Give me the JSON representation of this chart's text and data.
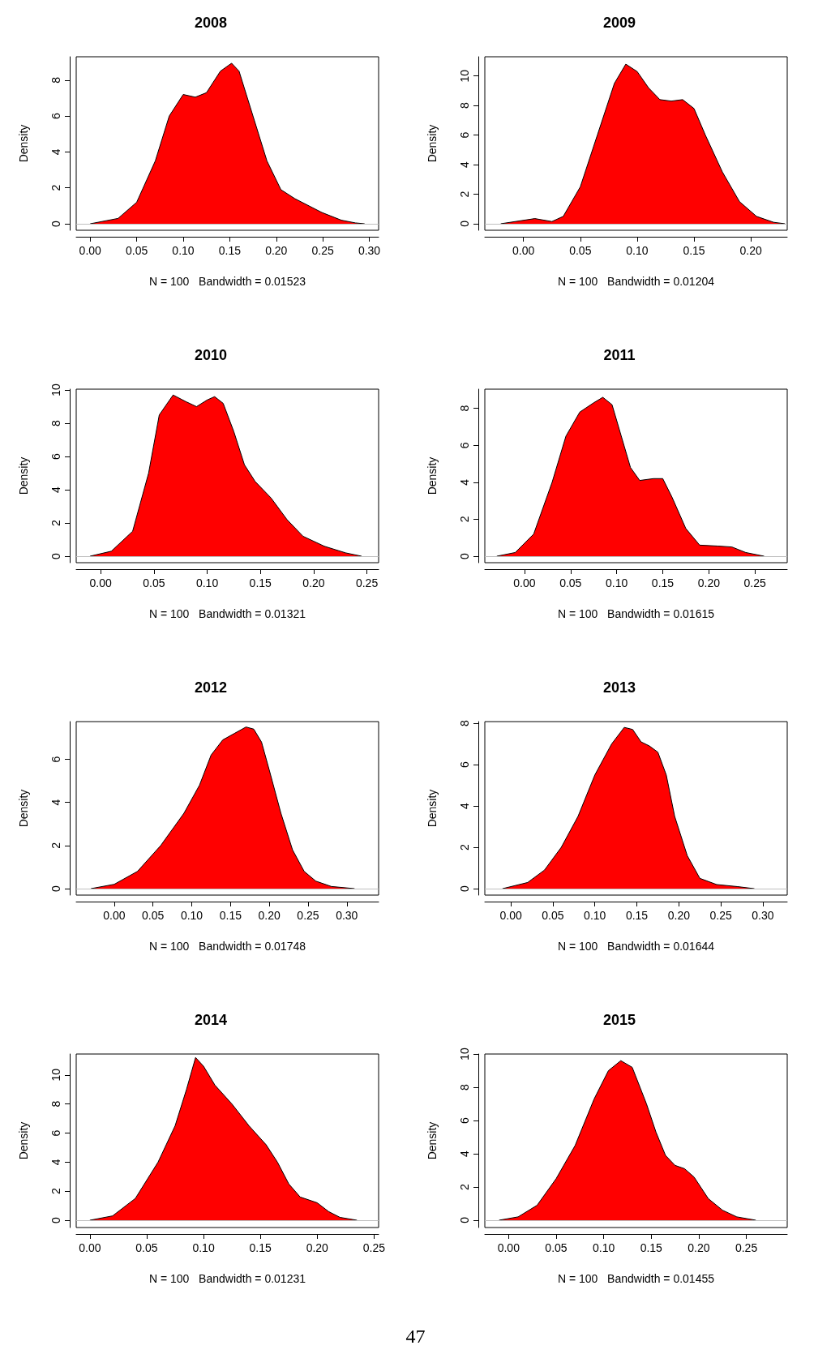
{
  "chart_data": [
    {
      "type": "area",
      "title": "2008",
      "xlabel": "N = 100   Bandwidth = 0.01523",
      "ylabel": "Density",
      "xlim": [
        -0.015,
        0.31
      ],
      "ylim": [
        -0.36,
        9.3
      ],
      "xticks": [
        {
          "value": 0,
          "label": "0.00"
        },
        {
          "value": 0.05,
          "label": "0.05"
        },
        {
          "value": 0.1,
          "label": "0.10"
        },
        {
          "value": 0.15,
          "label": "0.15"
        },
        {
          "value": 0.2,
          "label": "0.20"
        },
        {
          "value": 0.25,
          "label": "0.25"
        },
        {
          "value": 0.3,
          "label": "0.30"
        }
      ],
      "yticks": [
        0,
        2,
        4,
        6,
        8
      ],
      "grid": false,
      "marker": "none",
      "ref_lines": [
        {
          "axis": "y",
          "value": 0,
          "label": null,
          "color": "#bebebe"
        }
      ],
      "series": [
        {
          "color": "#ff0000",
          "x": [
            0,
            0.03,
            0.05,
            0.07,
            0.085,
            0.1,
            0.113,
            0.125,
            0.14,
            0.152,
            0.16,
            0.175,
            0.19,
            0.205,
            0.22,
            0.249,
            0.27,
            0.285,
            0.295
          ],
          "values": [
            0,
            0.3,
            1.2,
            3.5,
            6,
            7.2,
            7.05,
            7.3,
            8.5,
            8.94,
            8.5,
            6,
            3.5,
            1.9,
            1.4,
            0.63,
            0.2,
            0.05,
            0
          ]
        }
      ]
    },
    {
      "type": "area",
      "title": "2009",
      "xlabel": "N = 100   Bandwidth = 0.01204",
      "ylabel": "Density",
      "xlim": [
        -0.034,
        0.232
      ],
      "ylim": [
        -0.44,
        11.3
      ],
      "xticks": [
        {
          "value": 0,
          "label": "0.00"
        },
        {
          "value": 0.05,
          "label": "0.05"
        },
        {
          "value": 0.1,
          "label": "0.10"
        },
        {
          "value": 0.15,
          "label": "0.15"
        },
        {
          "value": 0.2,
          "label": "0.20"
        }
      ],
      "yticks": [
        0,
        2,
        4,
        6,
        8,
        10
      ],
      "grid": false,
      "marker": "none",
      "ref_lines": [
        {
          "axis": "y",
          "value": 0,
          "label": null,
          "color": "#bebebe"
        }
      ],
      "series": [
        {
          "color": "#ff0000",
          "x": [
            -0.02,
            0.01,
            0.025,
            0.035,
            0.05,
            0.065,
            0.08,
            0.09,
            0.1,
            0.11,
            0.12,
            0.13,
            0.14,
            0.15,
            0.16,
            0.175,
            0.19,
            0.205,
            0.22,
            0.23
          ],
          "values": [
            0,
            0.35,
            0.15,
            0.5,
            2.5,
            6,
            9.5,
            10.8,
            10.3,
            9.2,
            8.4,
            8.3,
            8.4,
            7.8,
            6,
            3.5,
            1.5,
            0.5,
            0.1,
            0
          ]
        }
      ]
    },
    {
      "type": "area",
      "title": "2010",
      "xlabel": "N = 100   Bandwidth = 0.01321",
      "ylabel": "Density",
      "xlim": [
        -0.023,
        0.261
      ],
      "ylim": [
        -0.39,
        10.05
      ],
      "xticks": [
        {
          "value": 0,
          "label": "0.00"
        },
        {
          "value": 0.05,
          "label": "0.05"
        },
        {
          "value": 0.1,
          "label": "0.10"
        },
        {
          "value": 0.15,
          "label": "0.15"
        },
        {
          "value": 0.2,
          "label": "0.20"
        },
        {
          "value": 0.25,
          "label": "0.25"
        }
      ],
      "yticks": [
        0,
        2,
        4,
        6,
        8,
        10
      ],
      "grid": false,
      "marker": "none",
      "ref_lines": [
        {
          "axis": "y",
          "value": 0,
          "label": null,
          "color": "#bebebe"
        }
      ],
      "series": [
        {
          "color": "#ff0000",
          "x": [
            -0.01,
            0.01,
            0.03,
            0.045,
            0.055,
            0.068,
            0.08,
            0.09,
            0.1,
            0.107,
            0.115,
            0.125,
            0.135,
            0.145,
            0.16,
            0.175,
            0.19,
            0.21,
            0.23,
            0.245
          ],
          "values": [
            0,
            0.3,
            1.5,
            5,
            8.5,
            9.7,
            9.3,
            9,
            9.4,
            9.6,
            9.2,
            7.5,
            5.5,
            4.5,
            3.5,
            2.2,
            1.2,
            0.6,
            0.2,
            0
          ]
        }
      ]
    },
    {
      "type": "area",
      "title": "2011",
      "xlabel": "N = 100   Bandwidth = 0.01615",
      "ylabel": "Density",
      "xlim": [
        -0.043,
        0.285
      ],
      "ylim": [
        -0.35,
        9.04
      ],
      "xticks": [
        {
          "value": 0,
          "label": "0.00"
        },
        {
          "value": 0.05,
          "label": "0.05"
        },
        {
          "value": 0.1,
          "label": "0.10"
        },
        {
          "value": 0.15,
          "label": "0.15"
        },
        {
          "value": 0.2,
          "label": "0.20"
        },
        {
          "value": 0.25,
          "label": "0.25"
        }
      ],
      "yticks": [
        0,
        2,
        4,
        6,
        8
      ],
      "grid": false,
      "marker": "none",
      "ref_lines": [
        {
          "axis": "y",
          "value": 0,
          "label": null,
          "color": "#bebebe"
        }
      ],
      "series": [
        {
          "color": "#ff0000",
          "x": [
            -0.03,
            -0.01,
            0.01,
            0.03,
            0.045,
            0.06,
            0.075,
            0.085,
            0.095,
            0.105,
            0.115,
            0.125,
            0.14,
            0.15,
            0.16,
            0.175,
            0.19,
            0.21,
            0.225,
            0.24,
            0.26
          ],
          "values": [
            0,
            0.2,
            1.2,
            4,
            6.5,
            7.8,
            8.3,
            8.6,
            8.2,
            6.5,
            4.8,
            4.1,
            4.2,
            4.2,
            3.2,
            1.5,
            0.6,
            0.55,
            0.5,
            0.2,
            0
          ]
        }
      ]
    },
    {
      "type": "area",
      "title": "2012",
      "xlabel": "N = 100   Bandwidth = 0.01748",
      "ylabel": "Density",
      "xlim": [
        -0.049,
        0.341
      ],
      "ylim": [
        -0.3,
        7.75
      ],
      "xticks": [
        {
          "value": 0,
          "label": "0.00"
        },
        {
          "value": 0.05,
          "label": "0.05"
        },
        {
          "value": 0.1,
          "label": "0.10"
        },
        {
          "value": 0.15,
          "label": "0.15"
        },
        {
          "value": 0.2,
          "label": "0.20"
        },
        {
          "value": 0.25,
          "label": "0.25"
        },
        {
          "value": 0.3,
          "label": "0.30"
        }
      ],
      "yticks": [
        0,
        2,
        4,
        6
      ],
      "grid": false,
      "marker": "none",
      "ref_lines": [
        {
          "axis": "y",
          "value": 0,
          "label": null,
          "color": "#bebebe"
        }
      ],
      "series": [
        {
          "color": "#ff0000",
          "x": [
            -0.03,
            0,
            0.03,
            0.06,
            0.09,
            0.11,
            0.125,
            0.14,
            0.155,
            0.17,
            0.18,
            0.19,
            0.2,
            0.215,
            0.23,
            0.245,
            0.26,
            0.28,
            0.31
          ],
          "values": [
            0,
            0.2,
            0.8,
            2,
            3.5,
            4.8,
            6.2,
            6.9,
            7.2,
            7.5,
            7.4,
            6.8,
            5.5,
            3.5,
            1.8,
            0.8,
            0.35,
            0.1,
            0
          ]
        }
      ]
    },
    {
      "type": "area",
      "title": "2013",
      "xlabel": "N = 100   Bandwidth = 0.01644",
      "ylabel": "Density",
      "xlim": [
        -0.031,
        0.329
      ],
      "ylim": [
        -0.31,
        8.08
      ],
      "xticks": [
        {
          "value": 0,
          "label": "0.00"
        },
        {
          "value": 0.05,
          "label": "0.05"
        },
        {
          "value": 0.1,
          "label": "0.10"
        },
        {
          "value": 0.15,
          "label": "0.15"
        },
        {
          "value": 0.2,
          "label": "0.20"
        },
        {
          "value": 0.25,
          "label": "0.25"
        },
        {
          "value": 0.3,
          "label": "0.30"
        }
      ],
      "yticks": [
        0,
        2,
        4,
        6,
        8
      ],
      "grid": false,
      "marker": "none",
      "ref_lines": [
        {
          "axis": "y",
          "value": 0,
          "label": null,
          "color": "#bebebe"
        }
      ],
      "series": [
        {
          "color": "#ff0000",
          "x": [
            -0.01,
            0.02,
            0.04,
            0.06,
            0.08,
            0.1,
            0.12,
            0.135,
            0.145,
            0.155,
            0.165,
            0.175,
            0.185,
            0.195,
            0.21,
            0.225,
            0.245,
            0.27,
            0.29
          ],
          "values": [
            0,
            0.3,
            0.9,
            2,
            3.5,
            5.5,
            7,
            7.8,
            7.7,
            7.1,
            6.9,
            6.6,
            5.5,
            3.5,
            1.6,
            0.5,
            0.2,
            0.1,
            0
          ]
        }
      ]
    },
    {
      "type": "area",
      "title": "2014",
      "xlabel": "N = 100   Bandwidth = 0.01231",
      "ylabel": "Density",
      "xlim": [
        -0.012,
        0.254
      ],
      "ylim": [
        -0.5,
        11.44
      ],
      "xticks": [
        {
          "value": 0,
          "label": "0.00"
        },
        {
          "value": 0.05,
          "label": "0.05"
        },
        {
          "value": 0.1,
          "label": "0.10"
        },
        {
          "value": 0.15,
          "label": "0.15"
        },
        {
          "value": 0.2,
          "label": "0.20"
        },
        {
          "value": 0.25,
          "label": "0.25"
        }
      ],
      "yticks": [
        0,
        2,
        4,
        6,
        8,
        10
      ],
      "grid": false,
      "marker": "none",
      "annotations": [
        "47"
      ],
      "ref_lines": [
        {
          "axis": "y",
          "value": 0,
          "label": null,
          "color": "#bebebe"
        }
      ],
      "series": [
        {
          "color": "#ff0000",
          "x": [
            0,
            0.02,
            0.04,
            0.06,
            0.075,
            0.085,
            0.093,
            0.1,
            0.11,
            0.125,
            0.14,
            0.155,
            0.165,
            0.175,
            0.185,
            0.2,
            0.21,
            0.22,
            0.235
          ],
          "values": [
            0,
            0.3,
            1.5,
            4,
            6.5,
            9,
            11.2,
            10.6,
            9.3,
            8,
            6.5,
            5.2,
            4,
            2.5,
            1.6,
            1.2,
            0.6,
            0.2,
            0
          ]
        }
      ]
    },
    {
      "type": "area",
      "title": "2015",
      "xlabel": "N = 100   Bandwidth = 0.01455",
      "ylabel": "Density",
      "xlim": [
        -0.025,
        0.293
      ],
      "ylim": [
        -0.44,
        10
      ],
      "xticks": [
        {
          "value": 0,
          "label": "0.00"
        },
        {
          "value": 0.05,
          "label": "0.05"
        },
        {
          "value": 0.1,
          "label": "0.10"
        },
        {
          "value": 0.15,
          "label": "0.15"
        },
        {
          "value": 0.2,
          "label": "0.20"
        },
        {
          "value": 0.25,
          "label": "0.25"
        }
      ],
      "yticks": [
        0,
        2,
        4,
        6,
        8,
        10
      ],
      "grid": false,
      "marker": "none",
      "ref_lines": [
        {
          "axis": "y",
          "value": 0,
          "label": null,
          "color": "#bebebe"
        }
      ],
      "series": [
        {
          "color": "#ff0000",
          "x": [
            -0.01,
            0.01,
            0.03,
            0.05,
            0.07,
            0.09,
            0.105,
            0.118,
            0.13,
            0.145,
            0.155,
            0.165,
            0.175,
            0.185,
            0.195,
            0.21,
            0.225,
            0.24,
            0.26
          ],
          "values": [
            0,
            0.2,
            0.9,
            2.5,
            4.5,
            7.3,
            9,
            9.6,
            9.2,
            7,
            5.3,
            3.9,
            3.3,
            3.1,
            2.6,
            1.3,
            0.6,
            0.2,
            0
          ]
        }
      ]
    }
  ]
}
